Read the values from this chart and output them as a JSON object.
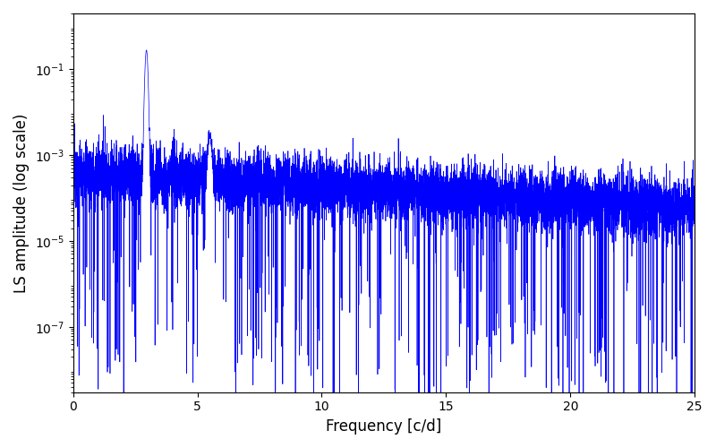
{
  "title": "",
  "xlabel": "Frequency [c/d]",
  "ylabel": "LS amplitude (log scale)",
  "xlim": [
    0,
    25
  ],
  "ylim": [
    3e-09,
    2.0
  ],
  "yticks": [
    1e-07,
    1e-05,
    0.001,
    0.1
  ],
  "line_color": "#0000ff",
  "line_width": 0.5,
  "background_color": "#ffffff",
  "freq_min": 0.0,
  "freq_max": 25.0,
  "n_points": 8000,
  "seed": 12345,
  "main_peak_freq": 2.95,
  "main_peak_amp": 0.28,
  "secondary_peak_freq": 5.5,
  "secondary_peak_amp": 0.0025,
  "figsize": [
    8.0,
    5.0
  ],
  "dpi": 100
}
